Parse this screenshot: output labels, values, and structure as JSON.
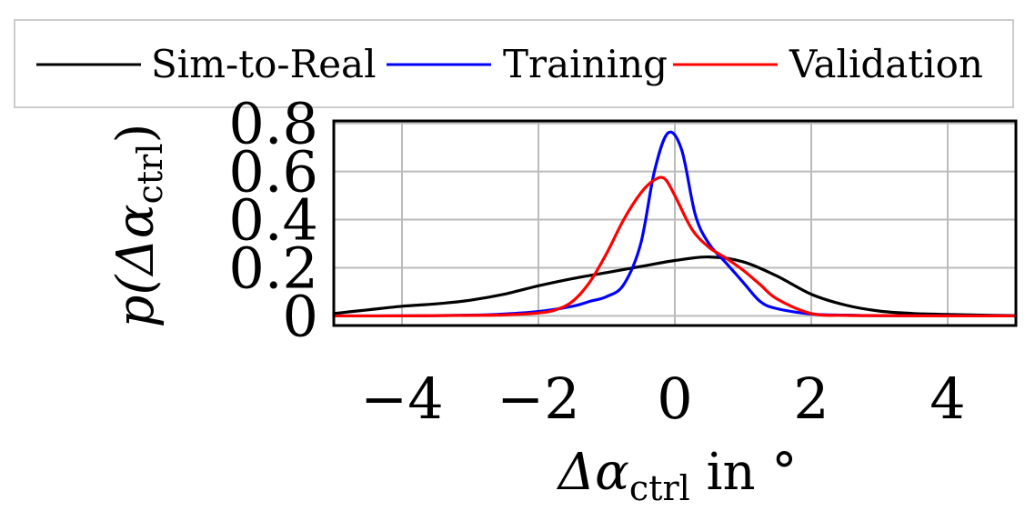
{
  "chart_data": {
    "type": "line",
    "title": "",
    "xlabel": {
      "main": "Δα",
      "sub": "ctrl",
      "suffix": " in °"
    },
    "ylabel": {
      "main": "p(Δα",
      "sub": "ctrl",
      "suffix": ")"
    },
    "xlim": [
      -5,
      5
    ],
    "ylim": [
      -0.04,
      0.81
    ],
    "xticks": [
      -4,
      -2,
      0,
      2,
      4
    ],
    "xtick_labels": [
      "−4",
      "−2",
      "0",
      "2",
      "4"
    ],
    "yticks": [
      0,
      0.2,
      0.4,
      0.6,
      0.8
    ],
    "ytick_labels": [
      "0",
      "0.2",
      "0.4",
      "0.6",
      "0.8"
    ],
    "grid": true,
    "legend_position": "top",
    "series": [
      {
        "name": "Sim-to-Real",
        "color": "#000000",
        "x": [
          -5,
          -4.5,
          -4,
          -3.5,
          -3,
          -2.5,
          -2,
          -1.5,
          -1,
          -0.5,
          0,
          0.5,
          1,
          1.5,
          2,
          2.5,
          3,
          3.5,
          4,
          4.5,
          5
        ],
        "y": [
          0.01,
          0.025,
          0.04,
          0.05,
          0.065,
          0.09,
          0.125,
          0.155,
          0.18,
          0.205,
          0.23,
          0.245,
          0.225,
          0.165,
          0.09,
          0.045,
          0.02,
          0.01,
          0.006,
          0.003,
          0.001
        ]
      },
      {
        "name": "Training",
        "color": "#0000ff",
        "x": [
          -5,
          -4,
          -3,
          -2.5,
          -2,
          -1.5,
          -1.25,
          -1,
          -0.75,
          -0.5,
          -0.3,
          -0.1,
          0.1,
          0.3,
          0.5,
          0.75,
          1,
          1.25,
          1.5,
          2,
          2.5,
          3,
          4,
          5
        ],
        "y": [
          0,
          0,
          0.003,
          0.008,
          0.018,
          0.04,
          0.06,
          0.08,
          0.13,
          0.3,
          0.6,
          0.76,
          0.69,
          0.42,
          0.3,
          0.22,
          0.14,
          0.06,
          0.03,
          0.008,
          0.003,
          0.001,
          0,
          0
        ]
      },
      {
        "name": "Validation",
        "color": "#ff0000",
        "x": [
          -5,
          -4,
          -3,
          -2.5,
          -2,
          -1.75,
          -1.5,
          -1.25,
          -1,
          -0.75,
          -0.5,
          -0.3,
          -0.15,
          0,
          0.25,
          0.5,
          0.75,
          1,
          1.25,
          1.5,
          2,
          2.5,
          3,
          4,
          5
        ],
        "y": [
          0,
          0,
          0.002,
          0.004,
          0.012,
          0.025,
          0.06,
          0.14,
          0.26,
          0.4,
          0.51,
          0.565,
          0.57,
          0.5,
          0.36,
          0.285,
          0.24,
          0.19,
          0.13,
          0.07,
          0.01,
          0.002,
          0.001,
          0,
          0
        ]
      }
    ]
  }
}
